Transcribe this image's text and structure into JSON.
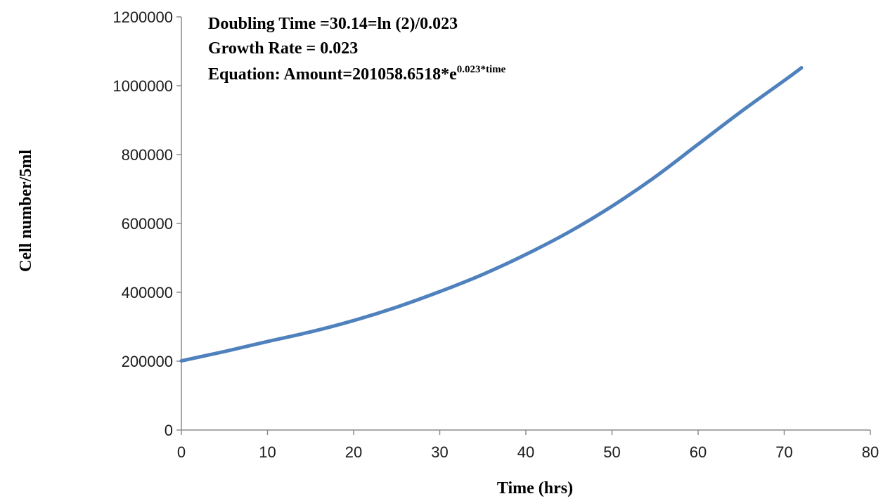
{
  "chart_data": {
    "type": "line",
    "title": "",
    "xlabel": "Time (hrs)",
    "ylabel": "Cell number/5ml",
    "xlim": [
      0,
      80
    ],
    "ylim": [
      0,
      1200000
    ],
    "x_ticks": [
      "0",
      "10",
      "20",
      "30",
      "40",
      "50",
      "60",
      "70",
      "80"
    ],
    "y_ticks": [
      "0",
      "200000",
      "400000",
      "600000",
      "800000",
      "1000000",
      "1200000"
    ],
    "grid": false,
    "legend": "none",
    "series": [
      {
        "color": "#4f81bd",
        "x": [
          0,
          5,
          10,
          15,
          20,
          25,
          30,
          35,
          40,
          45,
          50,
          55,
          60,
          65,
          70,
          72
        ],
        "y": [
          201000,
          228000,
          257000,
          285000,
          318000,
          357000,
          402000,
          452000,
          510000,
          575000,
          650000,
          735000,
          830000,
          925000,
          1015000,
          1052000
        ]
      }
    ],
    "annotations": {
      "line1": "Doubling Time =30.14=ln (2)/0.023",
      "line2": "Growth Rate = 0.023",
      "line3_main": "Equation: Amount=201058.6518*e",
      "line3_sup": "0.023*time"
    }
  }
}
